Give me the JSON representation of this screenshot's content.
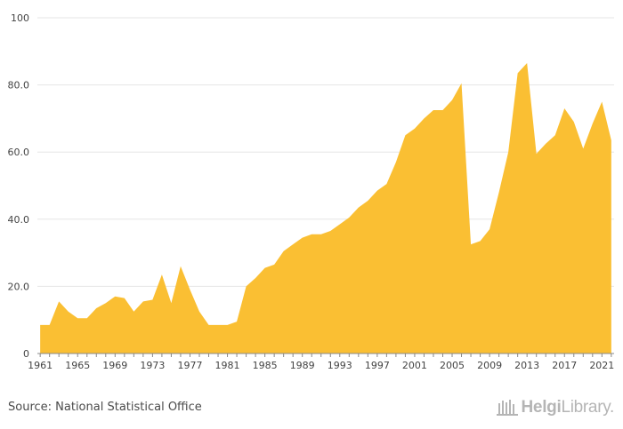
{
  "chart_data": {
    "type": "area",
    "x": [
      1961,
      1962,
      1963,
      1964,
      1965,
      1966,
      1967,
      1968,
      1969,
      1970,
      1971,
      1972,
      1973,
      1974,
      1975,
      1976,
      1977,
      1978,
      1979,
      1980,
      1981,
      1982,
      1983,
      1984,
      1985,
      1986,
      1987,
      1988,
      1989,
      1990,
      1991,
      1992,
      1993,
      1994,
      1995,
      1996,
      1997,
      1998,
      1999,
      2000,
      2001,
      2002,
      2003,
      2004,
      2005,
      2006,
      2007,
      2008,
      2009,
      2010,
      2011,
      2012,
      2013,
      2014,
      2015,
      2016,
      2017,
      2018,
      2019,
      2020,
      2021,
      2022
    ],
    "values": [
      8.5,
      8.5,
      15.5,
      12.5,
      10.5,
      10.5,
      13.5,
      15.0,
      17.0,
      16.5,
      12.5,
      15.5,
      16.0,
      23.5,
      15.0,
      26.0,
      19.0,
      12.5,
      8.5,
      8.5,
      8.5,
      9.5,
      20.0,
      22.5,
      25.5,
      26.5,
      30.5,
      32.5,
      34.5,
      35.5,
      35.5,
      36.5,
      38.5,
      40.5,
      43.5,
      45.5,
      48.5,
      50.5,
      57.0,
      65.0,
      67.0,
      70.0,
      72.5,
      72.5,
      75.5,
      80.5,
      32.5,
      33.5,
      37.0,
      48.0,
      60.0,
      83.5,
      86.5,
      59.5,
      62.5,
      65.0,
      73.0,
      69.0,
      61.0,
      68.5,
      75.0,
      63.5
    ],
    "xticks": [
      "1961",
      "1965",
      "1969",
      "1973",
      "1977",
      "1981",
      "1985",
      "1989",
      "1993",
      "1997",
      "2001",
      "2005",
      "2009",
      "2013",
      "2017",
      "2021"
    ],
    "yticks": [
      "0",
      "20.0",
      "40.0",
      "60.0",
      "80.0",
      "100"
    ],
    "ylim": [
      0,
      100
    ],
    "xlim": [
      1960.7,
      2022.3
    ],
    "title": "",
    "xlabel": "",
    "ylabel": "",
    "grid": "horizontal",
    "colors": {
      "area": "#fabf33",
      "grid": "#e6e6e6",
      "axis": "#888888",
      "tick_text": "#444444"
    }
  },
  "footer": {
    "source": "Source: National Statistical Office",
    "brand_bold": "Helgi",
    "brand_light": "Library."
  }
}
